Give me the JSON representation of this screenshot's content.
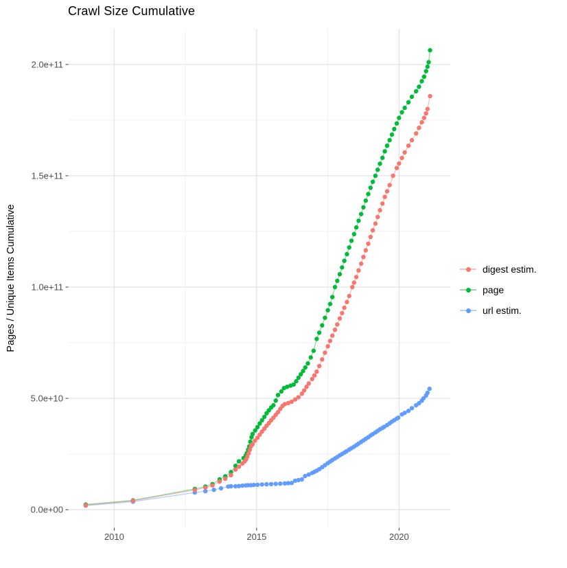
{
  "colors": {
    "background": "#ffffff",
    "grid_major": "#e3e3e3",
    "grid_minor": "#efefef",
    "axis_tick": "#333333",
    "tick_label": "#4d4d4d",
    "title": "#000000"
  },
  "chart_data": {
    "type": "scatter",
    "title": "Crawl Size Cumulative",
    "xlabel": "",
    "ylabel": "Pages / Unique Items Cumulative",
    "grid": true,
    "legend_position": "right",
    "values_unit": "billions (1e9)",
    "x_axis": {
      "range": [
        2008.4,
        2021.8
      ],
      "major_ticks": [
        2010,
        2015,
        2020
      ],
      "tick_labels": [
        "2010",
        "2015",
        "2020"
      ],
      "minor_ticks": [
        2012.5,
        2017.5
      ]
    },
    "y_axis": {
      "range_billions": [
        -8,
        216
      ],
      "major_ticks_billions": [
        0,
        50,
        100,
        150,
        200
      ],
      "tick_labels": [
        "0.0e+00",
        "5.0e+10",
        "1.0e+11",
        "1.5e+11",
        "2.0e+11"
      ],
      "minor_ticks_billions": [
        25,
        75,
        125,
        175
      ]
    },
    "draw_order": [
      2,
      1,
      0
    ],
    "series": [
      {
        "name": "digest estim.",
        "color": "#F8766D",
        "points": [
          [
            2009.0,
            2.0
          ],
          [
            2010.66,
            4.0
          ],
          [
            2012.83,
            8.8
          ],
          [
            2013.2,
            9.9
          ],
          [
            2013.45,
            10.9
          ],
          [
            2013.7,
            12.6
          ],
          [
            2013.9,
            13.9
          ],
          [
            2014.1,
            15.5
          ],
          [
            2014.26,
            18.0
          ],
          [
            2014.38,
            19.3
          ],
          [
            2014.5,
            20.7
          ],
          [
            2014.58,
            21.7
          ],
          [
            2014.63,
            22.6
          ],
          [
            2014.67,
            23.8
          ],
          [
            2014.72,
            25.3
          ],
          [
            2014.76,
            26.9
          ],
          [
            2014.8,
            28.4
          ],
          [
            2014.86,
            29.4
          ],
          [
            2014.94,
            31.0
          ],
          [
            2015.03,
            32.3
          ],
          [
            2015.11,
            33.7
          ],
          [
            2015.19,
            35.1
          ],
          [
            2015.27,
            36.4
          ],
          [
            2015.35,
            37.7
          ],
          [
            2015.43,
            38.9
          ],
          [
            2015.51,
            40.2
          ],
          [
            2015.59,
            41.3
          ],
          [
            2015.67,
            42.6
          ],
          [
            2015.75,
            43.8
          ],
          [
            2015.83,
            45.3
          ],
          [
            2015.91,
            46.6
          ],
          [
            2015.99,
            47.4
          ],
          [
            2016.11,
            47.9
          ],
          [
            2016.23,
            48.5
          ],
          [
            2016.35,
            49.5
          ],
          [
            2016.47,
            50.5
          ],
          [
            2016.59,
            52.1
          ],
          [
            2016.67,
            53.6
          ],
          [
            2016.75,
            55.2
          ],
          [
            2016.83,
            56.7
          ],
          [
            2016.95,
            58.7
          ],
          [
            2017.03,
            60.3
          ],
          [
            2017.11,
            62.0
          ],
          [
            2017.2,
            64.5
          ],
          [
            2017.3,
            67.5
          ],
          [
            2017.4,
            70.5
          ],
          [
            2017.5,
            73.4
          ],
          [
            2017.58,
            75.8
          ],
          [
            2017.66,
            78.2
          ],
          [
            2017.75,
            80.8
          ],
          [
            2017.83,
            83.2
          ],
          [
            2017.92,
            85.9
          ],
          [
            2018.0,
            88.3
          ],
          [
            2018.08,
            90.7
          ],
          [
            2018.17,
            93.3
          ],
          [
            2018.25,
            96.0
          ],
          [
            2018.36,
            100.0
          ],
          [
            2018.42,
            102.0
          ],
          [
            2018.5,
            104.5
          ],
          [
            2018.58,
            107.5
          ],
          [
            2018.67,
            110.5
          ],
          [
            2018.75,
            113.5
          ],
          [
            2018.83,
            116.5
          ],
          [
            2018.92,
            119.5
          ],
          [
            2019.0,
            122.5
          ],
          [
            2019.08,
            125.5
          ],
          [
            2019.17,
            128.5
          ],
          [
            2019.25,
            131.5
          ],
          [
            2019.33,
            134.5
          ],
          [
            2019.42,
            137.5
          ],
          [
            2019.5,
            140.5
          ],
          [
            2019.58,
            143.0
          ],
          [
            2019.67,
            145.8
          ],
          [
            2019.79,
            150.0
          ],
          [
            2019.92,
            153.5
          ],
          [
            2020.0,
            155.5
          ],
          [
            2020.1,
            158.0
          ],
          [
            2020.2,
            160.5
          ],
          [
            2020.33,
            163.5
          ],
          [
            2020.45,
            166.0
          ],
          [
            2020.6,
            169.0
          ],
          [
            2020.7,
            171.5
          ],
          [
            2020.8,
            174.0
          ],
          [
            2020.88,
            176.0
          ],
          [
            2020.95,
            178.0
          ],
          [
            2021.0,
            180.0
          ],
          [
            2021.09,
            185.8
          ]
        ]
      },
      {
        "name": "page",
        "color": "#00BA38",
        "points": [
          [
            2009.0,
            2.3
          ],
          [
            2010.66,
            4.2
          ],
          [
            2012.83,
            9.3
          ],
          [
            2013.2,
            10.4
          ],
          [
            2013.45,
            11.5
          ],
          [
            2013.7,
            13.6
          ],
          [
            2013.9,
            15.0
          ],
          [
            2014.1,
            16.9
          ],
          [
            2014.26,
            19.7
          ],
          [
            2014.38,
            21.7
          ],
          [
            2014.54,
            23.2
          ],
          [
            2014.62,
            24.4
          ],
          [
            2014.66,
            25.4
          ],
          [
            2014.7,
            26.9
          ],
          [
            2014.74,
            28.4
          ],
          [
            2014.78,
            30.5
          ],
          [
            2014.82,
            32.5
          ],
          [
            2014.86,
            34.0
          ],
          [
            2014.95,
            35.6
          ],
          [
            2015.03,
            37.1
          ],
          [
            2015.11,
            38.7
          ],
          [
            2015.19,
            40.2
          ],
          [
            2015.27,
            41.7
          ],
          [
            2015.35,
            43.3
          ],
          [
            2015.43,
            44.6
          ],
          [
            2015.51,
            45.9
          ],
          [
            2015.59,
            46.9
          ],
          [
            2015.67,
            49.0
          ],
          [
            2015.75,
            51.5
          ],
          [
            2015.87,
            53.1
          ],
          [
            2015.96,
            54.6
          ],
          [
            2016.07,
            55.2
          ],
          [
            2016.19,
            55.7
          ],
          [
            2016.3,
            56.2
          ],
          [
            2016.39,
            57.7
          ],
          [
            2016.47,
            59.3
          ],
          [
            2016.55,
            60.8
          ],
          [
            2016.63,
            62.3
          ],
          [
            2016.71,
            63.9
          ],
          [
            2016.8,
            65.7
          ],
          [
            2016.9,
            68.4
          ],
          [
            2017.0,
            71.4
          ],
          [
            2017.11,
            76.7
          ],
          [
            2017.2,
            79.5
          ],
          [
            2017.3,
            82.8
          ],
          [
            2017.4,
            86.2
          ],
          [
            2017.5,
            89.6
          ],
          [
            2017.58,
            92.4
          ],
          [
            2017.66,
            95.5
          ],
          [
            2017.75,
            100.0
          ],
          [
            2017.83,
            102.8
          ],
          [
            2017.92,
            105.8
          ],
          [
            2018.0,
            108.8
          ],
          [
            2018.08,
            111.8
          ],
          [
            2018.17,
            114.8
          ],
          [
            2018.25,
            117.8
          ],
          [
            2018.33,
            120.8
          ],
          [
            2018.42,
            123.8
          ],
          [
            2018.5,
            126.8
          ],
          [
            2018.58,
            129.8
          ],
          [
            2018.67,
            132.8
          ],
          [
            2018.75,
            135.8
          ],
          [
            2018.83,
            138.8
          ],
          [
            2018.92,
            141.8
          ],
          [
            2019.0,
            144.6
          ],
          [
            2019.08,
            147.3
          ],
          [
            2019.17,
            150.0
          ],
          [
            2019.25,
            152.7
          ],
          [
            2019.33,
            155.4
          ],
          [
            2019.42,
            158.1
          ],
          [
            2019.5,
            161.0
          ],
          [
            2019.58,
            163.5
          ],
          [
            2019.67,
            166.0
          ],
          [
            2019.75,
            168.5
          ],
          [
            2019.83,
            171.0
          ],
          [
            2019.92,
            173.5
          ],
          [
            2020.0,
            176.0
          ],
          [
            2020.1,
            178.5
          ],
          [
            2020.2,
            180.5
          ],
          [
            2020.33,
            183.0
          ],
          [
            2020.45,
            185.5
          ],
          [
            2020.6,
            188.0
          ],
          [
            2020.7,
            190.0
          ],
          [
            2020.8,
            192.5
          ],
          [
            2020.88,
            194.5
          ],
          [
            2020.95,
            197.0
          ],
          [
            2021.0,
            199.0
          ],
          [
            2021.04,
            201.0
          ],
          [
            2021.09,
            206.4
          ]
        ]
      },
      {
        "name": "url estim.",
        "color": "#619CFF",
        "points": [
          [
            2009.0,
            1.8
          ],
          [
            2010.66,
            3.6
          ],
          [
            2012.83,
            7.7
          ],
          [
            2013.2,
            8.3
          ],
          [
            2013.5,
            8.9
          ],
          [
            2013.75,
            9.6
          ],
          [
            2014.0,
            10.4
          ],
          [
            2014.1,
            10.5
          ],
          [
            2014.26,
            10.5
          ],
          [
            2014.38,
            10.6
          ],
          [
            2014.5,
            10.8
          ],
          [
            2014.62,
            10.9
          ],
          [
            2014.7,
            11.0
          ],
          [
            2014.8,
            11.0
          ],
          [
            2014.9,
            11.1
          ],
          [
            2015.03,
            11.2
          ],
          [
            2015.19,
            11.3
          ],
          [
            2015.35,
            11.4
          ],
          [
            2015.51,
            11.5
          ],
          [
            2015.67,
            11.6
          ],
          [
            2015.83,
            11.7
          ],
          [
            2015.99,
            11.8
          ],
          [
            2016.11,
            11.9
          ],
          [
            2016.23,
            12.0
          ],
          [
            2016.35,
            13.0
          ],
          [
            2016.47,
            13.3
          ],
          [
            2016.59,
            13.6
          ],
          [
            2016.7,
            15.1
          ],
          [
            2016.83,
            15.8
          ],
          [
            2016.95,
            16.5
          ],
          [
            2017.03,
            17.0
          ],
          [
            2017.11,
            17.5
          ],
          [
            2017.2,
            18.2
          ],
          [
            2017.3,
            19.1
          ],
          [
            2017.4,
            20.0
          ],
          [
            2017.5,
            20.9
          ],
          [
            2017.58,
            21.6
          ],
          [
            2017.66,
            22.3
          ],
          [
            2017.75,
            23.0
          ],
          [
            2017.83,
            23.7
          ],
          [
            2017.92,
            24.4
          ],
          [
            2018.0,
            25.0
          ],
          [
            2018.08,
            25.6
          ],
          [
            2018.15,
            26.2
          ],
          [
            2018.25,
            27.0
          ],
          [
            2018.33,
            27.6
          ],
          [
            2018.42,
            28.3
          ],
          [
            2018.5,
            29.0
          ],
          [
            2018.58,
            29.7
          ],
          [
            2018.67,
            30.4
          ],
          [
            2018.75,
            31.1
          ],
          [
            2018.83,
            31.8
          ],
          [
            2018.92,
            32.5
          ],
          [
            2019.0,
            33.3
          ],
          [
            2019.08,
            34.0
          ],
          [
            2019.17,
            34.7
          ],
          [
            2019.25,
            35.4
          ],
          [
            2019.33,
            36.1
          ],
          [
            2019.42,
            36.7
          ],
          [
            2019.48,
            37.2
          ],
          [
            2019.58,
            38.0
          ],
          [
            2019.67,
            38.8
          ],
          [
            2019.75,
            39.5
          ],
          [
            2019.83,
            40.2
          ],
          [
            2019.92,
            40.9
          ],
          [
            2019.97,
            41.3
          ],
          [
            2020.1,
            42.8
          ],
          [
            2020.2,
            43.5
          ],
          [
            2020.33,
            44.4
          ],
          [
            2020.45,
            45.6
          ],
          [
            2020.6,
            46.9
          ],
          [
            2020.7,
            47.8
          ],
          [
            2020.8,
            49.0
          ],
          [
            2020.86,
            50.0
          ],
          [
            2020.95,
            51.3
          ],
          [
            2021.0,
            52.5
          ],
          [
            2021.07,
            54.3
          ]
        ]
      }
    ]
  }
}
